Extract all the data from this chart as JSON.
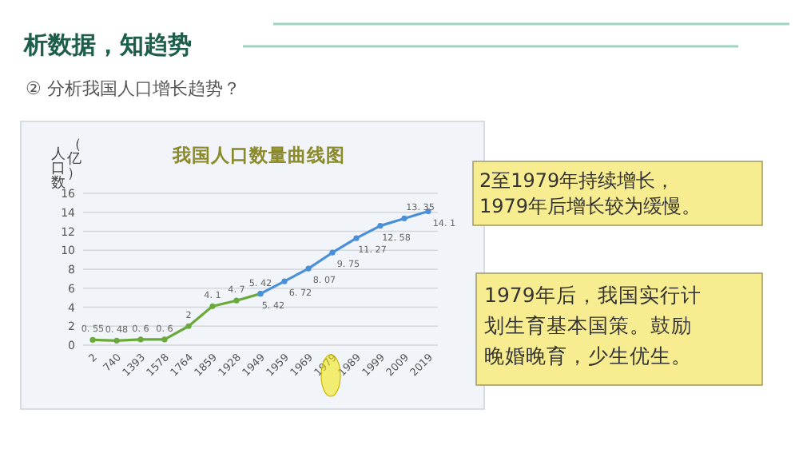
{
  "chart_data": {
    "type": "line",
    "title": "我国人口数量曲线图",
    "ylabel": "人口数（亿）",
    "categories": [
      "2",
      "740",
      "1393",
      "1578",
      "1764",
      "1859",
      "1928",
      "1949",
      "1959",
      "1969",
      "1979",
      "1989",
      "1999",
      "2009",
      "2019"
    ],
    "series": [
      {
        "color": "#6aaa3a",
        "values": [
          0.55,
          0.48,
          0.6,
          0.6,
          2,
          4.1,
          4.7,
          5.42,
          null,
          null,
          null,
          null,
          null,
          null,
          null
        ]
      },
      {
        "color": "#4a90d9",
        "values": [
          null,
          null,
          null,
          null,
          null,
          null,
          null,
          5.42,
          6.72,
          8.07,
          9.75,
          11.27,
          12.58,
          13.35,
          14.1
        ]
      }
    ],
    "ylim": [
      0,
      16
    ],
    "yticks": [
      0,
      2,
      4,
      6,
      8,
      10,
      12,
      14,
      16
    ],
    "grid": "y",
    "marker": "circle",
    "line_style": "solid",
    "data_labels": true,
    "annotations": [
      "析数据，知趋势",
      "② 分析我国人口增长趋势？",
      "2至1979年持续增长，",
      "1979年后增长较为缓慢。",
      "1979年后，我国实行计",
      "划生育基本国策。鼓励",
      "晚婚晚育，少生优生。"
    ]
  }
}
